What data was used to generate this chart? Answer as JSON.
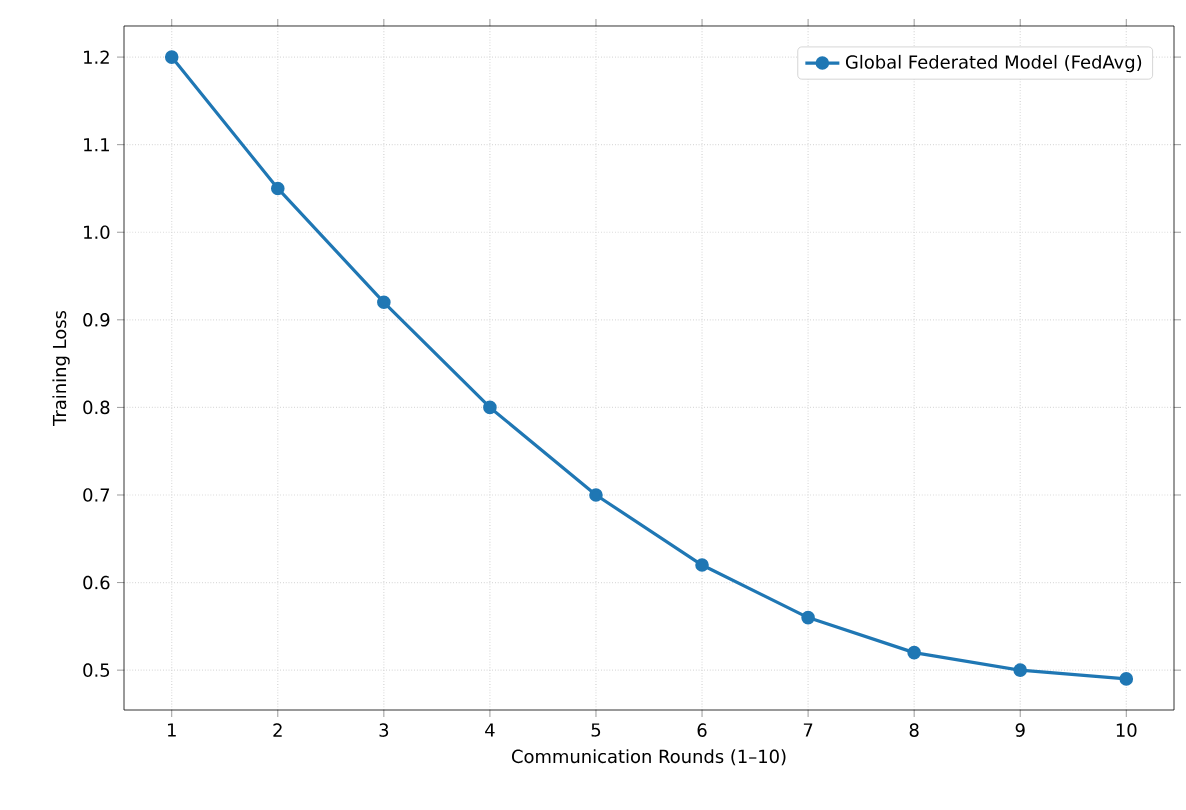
{
  "chart_data": {
    "type": "line",
    "xlabel": "Communication Rounds (1–10)",
    "ylabel": "Training Loss",
    "x": [
      1,
      2,
      3,
      4,
      5,
      6,
      7,
      8,
      9,
      10
    ],
    "series": [
      {
        "name": "Global Federated Model (FedAvg)",
        "color": "#1f77b4",
        "values": [
          1.2,
          1.05,
          0.92,
          0.8,
          0.7,
          0.62,
          0.56,
          0.52,
          0.5,
          0.49
        ]
      }
    ],
    "xlim": [
      0.55,
      10.45
    ],
    "ylim": [
      0.4545,
      1.2355
    ],
    "xticks": [
      1,
      2,
      3,
      4,
      5,
      6,
      7,
      8,
      9,
      10
    ],
    "yticks": [
      {
        "value": 0.5,
        "label": "0.5"
      },
      {
        "value": 0.6,
        "label": "0.6"
      },
      {
        "value": 0.7,
        "label": "0.7"
      },
      {
        "value": 0.8,
        "label": "0.8"
      },
      {
        "value": 0.9,
        "label": "0.9"
      },
      {
        "value": 1.0,
        "label": "1.0"
      },
      {
        "value": 1.1,
        "label": "1.1"
      },
      {
        "value": 1.2,
        "label": "1.2"
      }
    ],
    "grid": true,
    "legend": "top right",
    "marker": "circle",
    "line_style": "solid"
  }
}
